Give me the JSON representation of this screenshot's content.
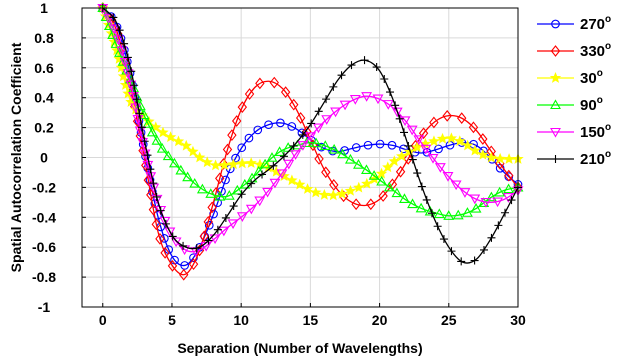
{
  "chart_data": {
    "type": "line",
    "xlabel": "Separation (Number of Wavelengths)",
    "ylabel": "Spatial Autocorrelation Coefficient",
    "xlim": [
      -1.5,
      30
    ],
    "ylim": [
      -1,
      1
    ],
    "xticks": [
      0,
      5,
      10,
      15,
      20,
      25,
      30
    ],
    "yticks": [
      -1,
      -0.8,
      -0.6,
      -0.4,
      -0.2,
      0,
      0.2,
      0.4,
      0.6,
      0.8,
      1
    ],
    "ytick_labels": [
      "-1",
      "-0.8",
      "-0.6",
      "-0.4",
      "-0.2",
      "0",
      "0.2",
      "0.4",
      "0.6",
      "0.8",
      "1"
    ],
    "grid": true,
    "legend_placement": "outside-right",
    "series": [
      {
        "name": "270",
        "name_superscript": "o",
        "color": "#0000ff",
        "marker": "circle",
        "x": [
          0,
          1,
          2,
          3,
          4,
          5,
          6,
          7,
          8,
          9,
          10,
          11,
          12,
          13,
          14,
          15,
          16,
          17,
          18,
          19,
          20,
          21,
          22,
          23,
          24,
          25,
          26,
          27,
          28,
          29,
          30
        ],
        "y": [
          1,
          0.88,
          0.55,
          0.05,
          -0.4,
          -0.66,
          -0.72,
          -0.6,
          -0.38,
          -0.12,
          0.06,
          0.17,
          0.22,
          0.23,
          0.19,
          0.12,
          0.06,
          0.04,
          0.06,
          0.08,
          0.09,
          0.08,
          0.05,
          0.03,
          0.05,
          0.08,
          0.1,
          0.08,
          0.0,
          -0.1,
          -0.18
        ]
      },
      {
        "name": "330",
        "name_superscript": "o",
        "color": "#ff0000",
        "marker": "diamond",
        "x": [
          0,
          1,
          2,
          3,
          4,
          5,
          6,
          7,
          8,
          9,
          10,
          11,
          12,
          13,
          14,
          15,
          16,
          17,
          18,
          19,
          20,
          21,
          22,
          23,
          24,
          25,
          26,
          27,
          28,
          29,
          30
        ],
        "y": [
          1,
          0.85,
          0.48,
          0.0,
          -0.5,
          -0.72,
          -0.78,
          -0.62,
          -0.3,
          0.05,
          0.32,
          0.47,
          0.51,
          0.46,
          0.32,
          0.12,
          -0.08,
          -0.22,
          -0.3,
          -0.32,
          -0.28,
          -0.17,
          -0.02,
          0.14,
          0.24,
          0.28,
          0.26,
          0.18,
          0.05,
          -0.08,
          -0.2
        ]
      },
      {
        "name": "30",
        "name_superscript": "o",
        "color": "#ffff00",
        "marker": "star",
        "x": [
          0,
          1,
          2,
          3,
          4,
          5,
          6,
          7,
          8,
          9,
          10,
          11,
          12,
          13,
          14,
          15,
          16,
          17,
          18,
          19,
          20,
          21,
          22,
          23,
          24,
          25,
          26,
          27,
          28,
          29,
          30
        ],
        "y": [
          1,
          0.72,
          0.38,
          0.27,
          0.19,
          0.13,
          0.08,
          0.0,
          -0.05,
          -0.05,
          -0.04,
          -0.04,
          -0.07,
          -0.12,
          -0.17,
          -0.22,
          -0.25,
          -0.25,
          -0.22,
          -0.18,
          -0.12,
          -0.03,
          0.03,
          0.08,
          0.11,
          0.13,
          0.1,
          0.04,
          0.0,
          -0.01,
          -0.01
        ]
      },
      {
        "name": "90",
        "name_superscript": "o",
        "color": "#00ff00",
        "marker": "triangle-up",
        "x": [
          0,
          1,
          2,
          3,
          4,
          5,
          6,
          7,
          8,
          9,
          10,
          11,
          12,
          13,
          14,
          15,
          16,
          17,
          18,
          19,
          20,
          21,
          22,
          23,
          24,
          25,
          26,
          27,
          28,
          29,
          30
        ],
        "y": [
          1,
          0.75,
          0.52,
          0.28,
          0.1,
          -0.02,
          -0.12,
          -0.2,
          -0.25,
          -0.26,
          -0.2,
          -0.12,
          -0.02,
          0.05,
          0.08,
          0.1,
          0.08,
          0.04,
          -0.02,
          -0.08,
          -0.15,
          -0.22,
          -0.29,
          -0.34,
          -0.37,
          -0.39,
          -0.38,
          -0.34,
          -0.27,
          -0.22,
          -0.2
        ]
      },
      {
        "name": "150",
        "name_superscript": "o",
        "color": "#ff00ff",
        "marker": "triangle-down",
        "x": [
          0,
          1,
          2,
          3,
          4,
          5,
          6,
          7,
          8,
          9,
          10,
          11,
          12,
          13,
          14,
          15,
          16,
          17,
          18,
          19,
          20,
          21,
          22,
          23,
          24,
          25,
          26,
          27,
          28,
          29,
          30
        ],
        "y": [
          1,
          0.82,
          0.5,
          0.05,
          -0.3,
          -0.52,
          -0.62,
          -0.62,
          -0.55,
          -0.47,
          -0.4,
          -0.32,
          -0.22,
          -0.1,
          0.03,
          0.14,
          0.24,
          0.32,
          0.38,
          0.41,
          0.39,
          0.33,
          0.23,
          0.1,
          -0.02,
          -0.13,
          -0.22,
          -0.28,
          -0.3,
          -0.28,
          -0.22
        ]
      },
      {
        "name": "210",
        "name_superscript": "o",
        "color": "#000000",
        "marker": "plus",
        "x": [
          0,
          1,
          2,
          3,
          4,
          5,
          6,
          7,
          8,
          9,
          10,
          11,
          12,
          13,
          14,
          15,
          16,
          17,
          18,
          19,
          20,
          21,
          22,
          23,
          24,
          25,
          26,
          27,
          28,
          29,
          30
        ],
        "y": [
          1,
          0.9,
          0.6,
          0.12,
          -0.3,
          -0.52,
          -0.6,
          -0.6,
          -0.52,
          -0.39,
          -0.25,
          -0.15,
          -0.08,
          0.0,
          0.1,
          0.22,
          0.37,
          0.52,
          0.62,
          0.65,
          0.58,
          0.38,
          0.1,
          -0.18,
          -0.42,
          -0.6,
          -0.7,
          -0.68,
          -0.55,
          -0.38,
          -0.2
        ]
      }
    ]
  }
}
